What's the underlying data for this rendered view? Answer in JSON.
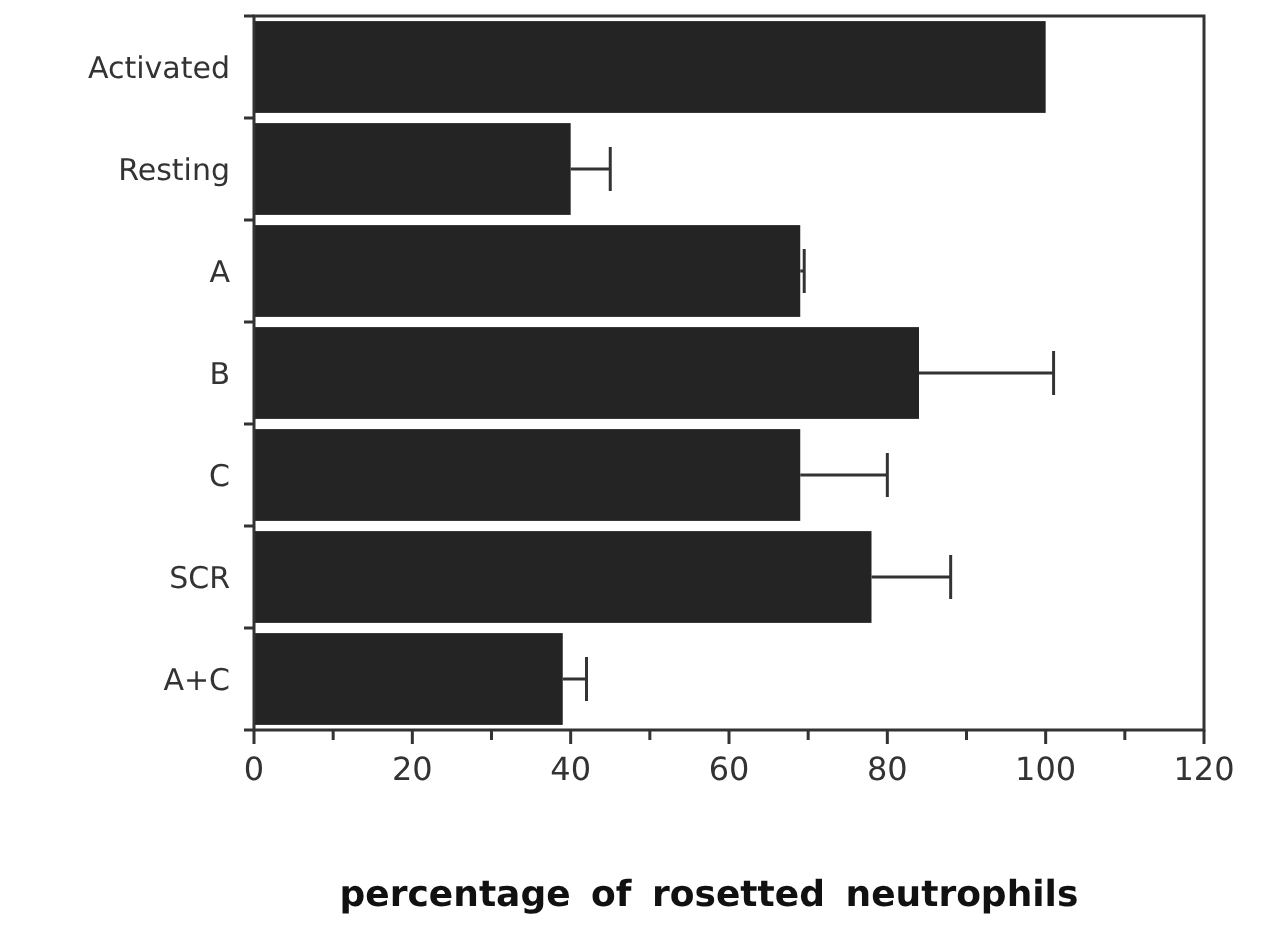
{
  "chart_data": {
    "type": "bar",
    "orientation": "horizontal",
    "xlabel": "percentage of rosetted neutrophils",
    "categories": [
      "Activated",
      "Resting",
      "A",
      "B",
      "C",
      "SCR",
      "A+C"
    ],
    "values": [
      100,
      40,
      69,
      84,
      69,
      78,
      39
    ],
    "errors": [
      null,
      5,
      0.5,
      17,
      11,
      10,
      3
    ],
    "color": "#242424",
    "xlim": [
      0,
      120
    ],
    "xticks": [
      0,
      {
        "value": 10,
        "label": null
      },
      20,
      {
        "value": 30,
        "label": null
      },
      40,
      {
        "value": 50,
        "label": null
      },
      60,
      {
        "value": 70,
        "label": null
      },
      80,
      {
        "value": 90,
        "label": null
      },
      100,
      {
        "value": 110,
        "label": null
      },
      120
    ],
    "grid": false
  }
}
